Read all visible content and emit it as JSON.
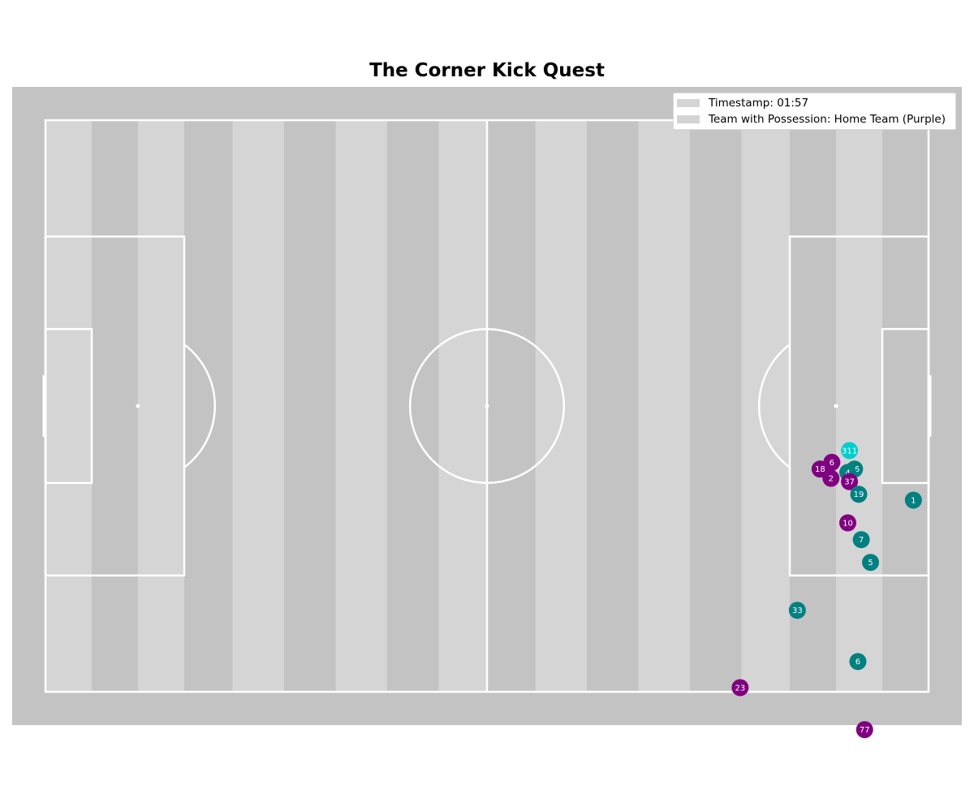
{
  "title": "The Corner Kick Quest",
  "legend": {
    "timestamp": "Timestamp: 01:57",
    "possession": "Team with Possession: Home Team (Purple)"
  },
  "colors": {
    "home": "#800080",
    "away": "#008080",
    "keeper": "#00cdcd",
    "pitch_light": "#d5d5d5",
    "pitch_dark": "#c3c3c3",
    "lines": "#ffffff"
  },
  "pitch": {
    "length": 105,
    "width": 68
  },
  "players": [
    {
      "number": "311",
      "team": "keeper",
      "x": 95.6,
      "y": 39.3
    },
    {
      "number": "6",
      "team": "home",
      "x": 93.5,
      "y": 40.7
    },
    {
      "number": "18",
      "team": "home",
      "x": 92.1,
      "y": 41.5
    },
    {
      "number": "16",
      "team": "away",
      "x": 96.2,
      "y": 41.5
    },
    {
      "number": "4",
      "team": "away",
      "x": 95.4,
      "y": 41.9
    },
    {
      "number": "2",
      "team": "home",
      "x": 93.4,
      "y": 42.6
    },
    {
      "number": "37",
      "team": "home",
      "x": 95.6,
      "y": 43.0
    },
    {
      "number": "19",
      "team": "away",
      "x": 96.7,
      "y": 44.5
    },
    {
      "number": "1",
      "team": "away",
      "x": 103.2,
      "y": 45.2
    },
    {
      "number": "10",
      "team": "home",
      "x": 95.4,
      "y": 47.9
    },
    {
      "number": "7",
      "team": "away",
      "x": 97.0,
      "y": 49.9
    },
    {
      "number": "5",
      "team": "away",
      "x": 98.1,
      "y": 52.6
    },
    {
      "number": "33",
      "team": "away",
      "x": 89.4,
      "y": 58.3
    },
    {
      "number": "6",
      "team": "away",
      "x": 96.6,
      "y": 64.4
    },
    {
      "number": "23",
      "team": "home",
      "x": 82.6,
      "y": 67.5
    },
    {
      "number": "77",
      "team": "home",
      "x": 97.4,
      "y": 72.5
    }
  ],
  "ball": {
    "x": 94.0,
    "y": 34.0
  }
}
